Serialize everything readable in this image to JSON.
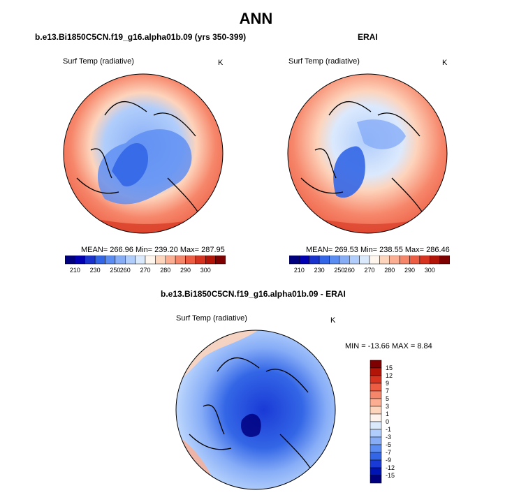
{
  "title": "ANN",
  "colors": {
    "abs_scale": [
      "#00007f",
      "#0000b2",
      "#1a33cc",
      "#3366e6",
      "#5b8cf2",
      "#87adf7",
      "#b0cdfb",
      "#dbe9fd",
      "#fff6ee",
      "#fdd4bc",
      "#fbae92",
      "#f6866a",
      "#ec5d43",
      "#d63420",
      "#b21408",
      "#7f0000"
    ],
    "diff_scale": [
      "#00007f",
      "#0014b4",
      "#1a3ad6",
      "#3366e6",
      "#5b8cf2",
      "#87adf7",
      "#b0cdfb",
      "#dbe9fd",
      "#fdf3ec",
      "#fdd4bc",
      "#fbae92",
      "#f6866a",
      "#ec5d43",
      "#d63420",
      "#b21408",
      "#7f0000"
    ]
  },
  "chart_data": [
    {
      "type": "heatmap",
      "projection": "north-polar-stereographic",
      "title": "b.e13.Bi1850C5CN.f19_g16.alpha01b.09 (yrs 350-399)",
      "variable": "Surf Temp (radiative)",
      "units": "K",
      "stats": "MEAN= 266.96  Min= 239.20  Max= 287.95",
      "mean": 266.96,
      "min": 239.2,
      "max": 287.95,
      "colorbar": {
        "orientation": "horizontal",
        "min": 205,
        "max": 305,
        "levels": [
          210,
          230,
          250,
          260,
          270,
          280,
          290,
          300
        ],
        "tick_labels": [
          "210",
          "230",
          "250",
          "260",
          "270",
          "280",
          "290",
          "300"
        ]
      }
    },
    {
      "type": "heatmap",
      "projection": "north-polar-stereographic",
      "title": "ERAI",
      "variable": "Surf Temp (radiative)",
      "units": "K",
      "stats": "MEAN= 269.53  Min= 238.55  Max= 286.46",
      "mean": 269.53,
      "min": 238.55,
      "max": 286.46,
      "colorbar": {
        "orientation": "horizontal",
        "min": 205,
        "max": 305,
        "levels": [
          210,
          230,
          250,
          260,
          270,
          280,
          290,
          300
        ],
        "tick_labels": [
          "210",
          "230",
          "250",
          "260",
          "270",
          "280",
          "290",
          "300"
        ]
      }
    },
    {
      "type": "heatmap",
      "projection": "north-polar-stereographic",
      "title": "b.e13.Bi1850C5CN.f19_g16.alpha01b.09 - ERAI",
      "variable": "Surf Temp (radiative)",
      "units": "K",
      "stats": "MIN = -13.66 MAX =   8.84",
      "min": -13.66,
      "max": 8.84,
      "colorbar": {
        "orientation": "vertical",
        "levels": [
          15,
          12,
          9,
          7,
          5,
          3,
          1,
          0,
          -1,
          -3,
          -5,
          -7,
          -9,
          -12,
          -15
        ],
        "tick_labels": [
          "15",
          "12",
          "9",
          "7",
          "5",
          "3",
          "1",
          "0",
          "-1",
          "-3",
          "-5",
          "-7",
          "-9",
          "-12",
          "-15"
        ]
      }
    }
  ]
}
